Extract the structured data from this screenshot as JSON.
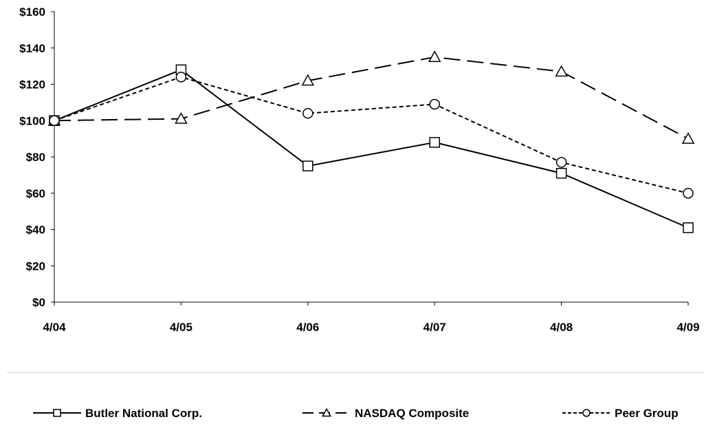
{
  "chart_data": {
    "type": "line",
    "title": "",
    "xlabel": "",
    "ylabel": "",
    "categories": [
      "4/04",
      "4/05",
      "4/06",
      "4/07",
      "4/08",
      "4/09"
    ],
    "ylim": [
      0,
      160
    ],
    "y_ticks": [
      0,
      20,
      40,
      60,
      80,
      100,
      120,
      140,
      160
    ],
    "y_tick_labels": [
      "$0",
      "$20",
      "$40",
      "$60",
      "$80",
      "$100",
      "$120",
      "$140",
      "$160"
    ],
    "grid": false,
    "legend_position": "bottom",
    "series": [
      {
        "name": "Butler National Corp.",
        "values": [
          100,
          128,
          75,
          88,
          71,
          41
        ],
        "marker": "square",
        "line_style": "solid",
        "color": "#000000"
      },
      {
        "name": "NASDAQ Composite",
        "values": [
          100,
          101,
          122,
          135,
          127,
          90
        ],
        "marker": "triangle",
        "line_style": "long-dash",
        "color": "#000000"
      },
      {
        "name": "Peer Group",
        "values": [
          100,
          124,
          104,
          109,
          77,
          60
        ],
        "marker": "circle",
        "line_style": "short-dash",
        "color": "#000000"
      }
    ]
  }
}
